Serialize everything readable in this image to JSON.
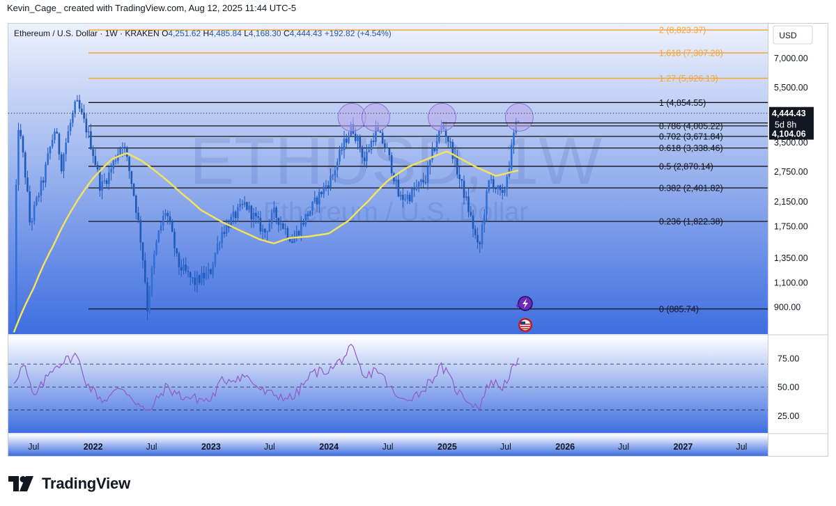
{
  "header": {
    "credit": "Kevin_Cage_ created with TradingView.com, Aug 12, 2025 11:44 UTC-5"
  },
  "legend": {
    "symbol": "Ethereum / U.S. Dollar · 1W · KRAKEN",
    "open_label": "O",
    "open": "4,251.62",
    "high_label": "H",
    "high": "4,485.84",
    "low_label": "L",
    "low": "4,168.30",
    "close_label": "C",
    "close": "4,444.43",
    "change": "+192.82 (+4.54%)"
  },
  "watermark": {
    "ticker": "ETHUSD, 1W",
    "name": "Ethereum / U.S. Dollar"
  },
  "price_scale": {
    "currency": "USD",
    "ticks": [
      "7,000.00",
      "5,500.00",
      "3,500.00",
      "2,750.00",
      "2,150.00",
      "1,750.00",
      "1,350.00",
      "1,100.00",
      "900.00"
    ],
    "last_price": "4,444.43",
    "countdown": "5d 8h",
    "marker_price": "4,104.06"
  },
  "rsi_scale": {
    "ticks": [
      "75.00",
      "50.00",
      "25.00"
    ]
  },
  "time_axis": {
    "labels": [
      {
        "text": "Jul",
        "bold": false
      },
      {
        "text": "2022",
        "bold": true
      },
      {
        "text": "Jul",
        "bold": false
      },
      {
        "text": "2023",
        "bold": true
      },
      {
        "text": "Jul",
        "bold": false
      },
      {
        "text": "2024",
        "bold": true
      },
      {
        "text": "Jul",
        "bold": false
      },
      {
        "text": "2025",
        "bold": true
      },
      {
        "text": "Jul",
        "bold": false
      },
      {
        "text": "2026",
        "bold": true
      },
      {
        "text": "Jul",
        "bold": false
      },
      {
        "text": "2027",
        "bold": true
      },
      {
        "text": "Jul",
        "bold": false
      }
    ]
  },
  "colors": {
    "candle": "#1e58b8",
    "ma": "#f3e35a",
    "rsi": "#9159c9",
    "fib_ext": "#f7a433",
    "fib_line": "#111111",
    "circle_fill": "#b9a7ea",
    "circle_stroke": "#8a72d8",
    "bg_top": "#eef2fc",
    "bg_bottom": "#3e6ee0"
  },
  "icons": {
    "events": [
      "lightning-event-icon",
      "us-flag-event-icon"
    ]
  },
  "branding": {
    "logo_text": "TradingView"
  },
  "chart_data": {
    "type": "candlestick",
    "title": "Ethereum / U.S. Dollar · 1W · KRAKEN",
    "scale": "log",
    "ylim": [
      720,
      9300
    ],
    "fib_levels": [
      {
        "label": "0 (885.74)",
        "value": 885.74,
        "kind": "level"
      },
      {
        "label": "0.236 (1,822.38)",
        "value": 1822.38,
        "kind": "level"
      },
      {
        "label": "0.382 (2,401.82)",
        "value": 2401.82,
        "kind": "level"
      },
      {
        "label": "0.5 (2,870.14)",
        "value": 2870.14,
        "kind": "level"
      },
      {
        "label": "0.618 (3,338.46)",
        "value": 3338.46,
        "kind": "level"
      },
      {
        "label": "0.702 (3,671.84)",
        "value": 3671.84,
        "kind": "level"
      },
      {
        "label": "0.786 (4,005.22)",
        "value": 4005.22,
        "kind": "level"
      },
      {
        "label": "1 (4,854.55)",
        "value": 4854.55,
        "kind": "level"
      },
      {
        "label": "1.27 (5,926.13)",
        "value": 5926.13,
        "kind": "ext"
      },
      {
        "label": "1.618 (7,307.28)",
        "value": 7307.28,
        "kind": "ext"
      },
      {
        "label": "2 (8,823.37)",
        "value": 8823.37,
        "kind": "ext"
      }
    ],
    "price_path": [
      [
        "2021-05-01",
        700
      ],
      [
        "2021-05-15",
        4000
      ],
      [
        "2021-06-20",
        1750
      ],
      [
        "2021-08-01",
        2600
      ],
      [
        "2021-09-05",
        3900
      ],
      [
        "2021-09-25",
        2900
      ],
      [
        "2021-11-10",
        4850
      ],
      [
        "2021-12-15",
        3800
      ],
      [
        "2022-01-24",
        2400
      ],
      [
        "2022-02-20",
        2700
      ],
      [
        "2022-04-02",
        3500
      ],
      [
        "2022-05-15",
        2000
      ],
      [
        "2022-06-18",
        890
      ],
      [
        "2022-07-20",
        1600
      ],
      [
        "2022-08-14",
        2000
      ],
      [
        "2022-09-20",
        1280
      ],
      [
        "2022-11-10",
        1100
      ],
      [
        "2022-12-30",
        1200
      ],
      [
        "2023-02-01",
        1650
      ],
      [
        "2023-04-16",
        2100
      ],
      [
        "2023-06-15",
        1650
      ],
      [
        "2023-07-15",
        1950
      ],
      [
        "2023-09-11",
        1550
      ],
      [
        "2023-11-10",
        2050
      ],
      [
        "2024-01-12",
        2650
      ],
      [
        "2024-03-12",
        4000
      ],
      [
        "2024-04-20",
        3000
      ],
      [
        "2024-05-25",
        3850
      ],
      [
        "2024-06-25",
        3350
      ],
      [
        "2024-08-05",
        2200
      ],
      [
        "2024-09-06",
        2250
      ],
      [
        "2024-10-28",
        2600
      ],
      [
        "2024-12-16",
        4050
      ],
      [
        "2025-01-15",
        3300
      ],
      [
        "2025-02-05",
        2650
      ],
      [
        "2025-03-11",
        1950
      ],
      [
        "2025-04-09",
        1400
      ],
      [
        "2025-05-13",
        2600
      ],
      [
        "2025-06-22",
        2200
      ],
      [
        "2025-07-14",
        3000
      ],
      [
        "2025-07-28",
        3800
      ],
      [
        "2025-08-12",
        4444.43
      ]
    ],
    "ma_path": [
      [
        "2021-05-01",
        730
      ],
      [
        "2021-07-01",
        1050
      ],
      [
        "2021-09-01",
        1500
      ],
      [
        "2021-11-01",
        2050
      ],
      [
        "2022-01-01",
        2600
      ],
      [
        "2022-03-01",
        3050
      ],
      [
        "2022-04-15",
        3200
      ],
      [
        "2022-06-01",
        3000
      ],
      [
        "2022-08-01",
        2650
      ],
      [
        "2022-10-01",
        2300
      ],
      [
        "2022-12-01",
        2000
      ],
      [
        "2023-02-01",
        1820
      ],
      [
        "2023-04-01",
        1690
      ],
      [
        "2023-06-01",
        1570
      ],
      [
        "2023-07-15",
        1520
      ],
      [
        "2023-09-01",
        1590
      ],
      [
        "2023-11-01",
        1610
      ],
      [
        "2024-01-01",
        1650
      ],
      [
        "2024-03-01",
        1830
      ],
      [
        "2024-05-01",
        2150
      ],
      [
        "2024-07-01",
        2550
      ],
      [
        "2024-09-01",
        2850
      ],
      [
        "2024-11-01",
        3050
      ],
      [
        "2025-01-01",
        3250
      ],
      [
        "2025-02-01",
        3100
      ],
      [
        "2025-04-01",
        2850
      ],
      [
        "2025-06-01",
        2650
      ],
      [
        "2025-08-12",
        2780
      ]
    ],
    "rsi_path": [
      [
        "2021-05-01",
        55
      ],
      [
        "2021-06-01",
        70
      ],
      [
        "2021-07-01",
        40
      ],
      [
        "2021-09-01",
        68
      ],
      [
        "2021-11-10",
        78
      ],
      [
        "2021-12-15",
        52
      ],
      [
        "2022-02-01",
        38
      ],
      [
        "2022-04-01",
        50
      ],
      [
        "2022-06-18",
        27
      ],
      [
        "2022-08-14",
        50
      ],
      [
        "2022-10-01",
        42
      ],
      [
        "2022-12-30",
        38
      ],
      [
        "2023-02-01",
        55
      ],
      [
        "2023-04-16",
        60
      ],
      [
        "2023-06-15",
        45
      ],
      [
        "2023-09-11",
        40
      ],
      [
        "2023-11-10",
        62
      ],
      [
        "2024-01-12",
        66
      ],
      [
        "2024-03-12",
        84
      ],
      [
        "2024-04-20",
        56
      ],
      [
        "2024-05-25",
        67
      ],
      [
        "2024-06-25",
        55
      ],
      [
        "2024-08-05",
        38
      ],
      [
        "2024-10-10",
        45
      ],
      [
        "2024-12-16",
        68
      ],
      [
        "2025-02-05",
        45
      ],
      [
        "2025-04-09",
        32
      ],
      [
        "2025-05-13",
        55
      ],
      [
        "2025-06-22",
        50
      ],
      [
        "2025-07-14",
        62
      ],
      [
        "2025-08-12",
        72
      ]
    ],
    "rsi_levels": [
      70,
      50,
      30
    ],
    "resistance_circles": [
      "2024-03-12",
      "2024-05-25",
      "2024-12-16",
      "2025-08-12"
    ],
    "horizontal_line": 4104.06,
    "time_range": [
      "2021-05-01",
      "2027-09-20"
    ]
  }
}
